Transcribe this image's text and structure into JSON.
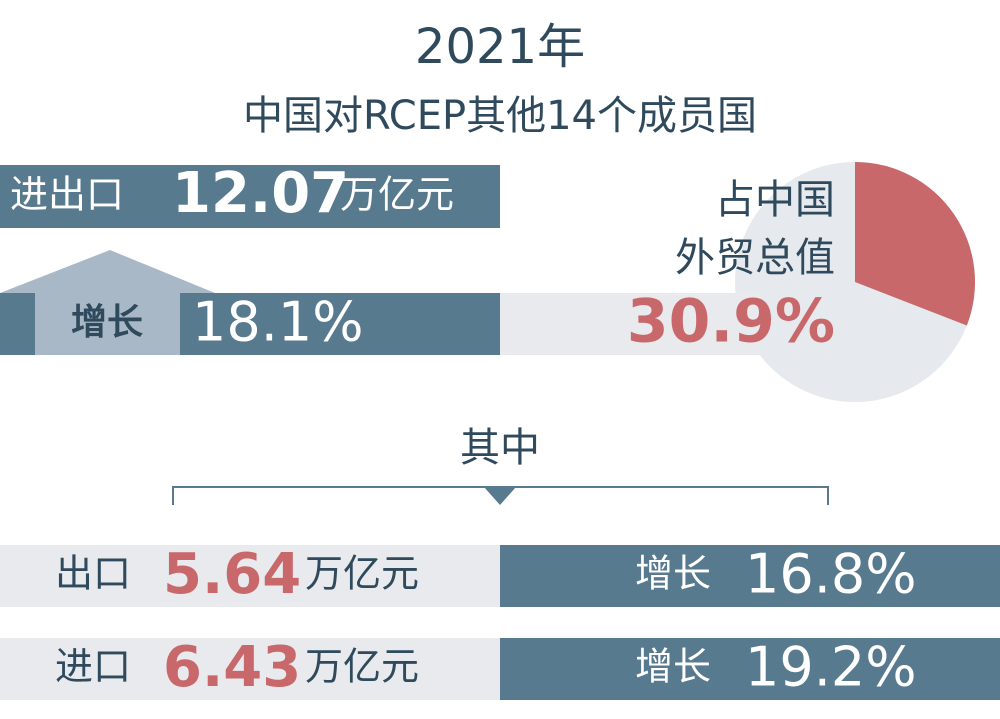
{
  "header": {
    "year": "2021年",
    "subtitle": "中国对RCEP其他14个成员国"
  },
  "total": {
    "label": "进出口",
    "amount": "12.07",
    "unit": "万亿元",
    "growth_label": "增长",
    "growth": "18.1%"
  },
  "share": {
    "label_line1": "占中国",
    "label_line2": "外贸总值",
    "value": 30.9,
    "label": "30.9%"
  },
  "breakdown": {
    "title": "其中",
    "rows": [
      {
        "label": "出口",
        "amount": "5.64",
        "unit": "万亿元",
        "growth_label": "增长",
        "growth": "16.8%"
      },
      {
        "label": "进口",
        "amount": "6.43",
        "unit": "万亿元",
        "growth_label": "增长",
        "growth": "19.2%"
      }
    ]
  }
}
